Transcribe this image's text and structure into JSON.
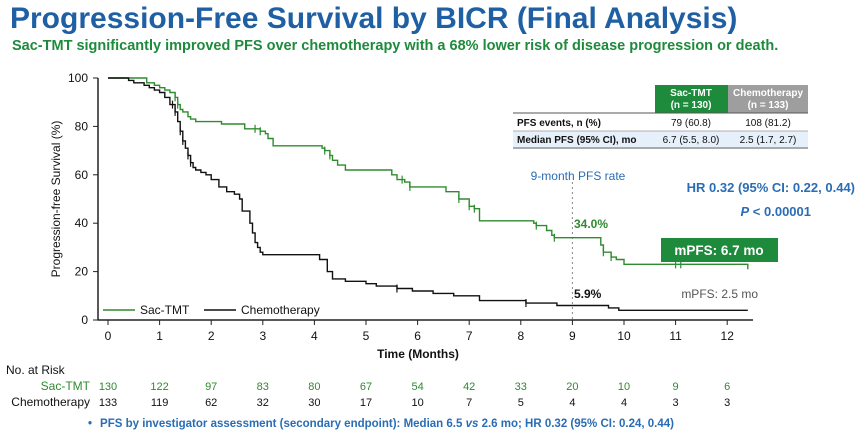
{
  "title": "Progression-Free Survival by BICR (Final Analysis)",
  "subtitle": "Sac-TMT significantly improved PFS over chemotherapy with a 68% lower risk of disease progression or death.",
  "colors": {
    "title": "#1f5fa3",
    "subtitle": "#1e8a3c",
    "sac": "#2e8b2e",
    "chemo": "#111111",
    "blue_text": "#2a6cb5",
    "median_box": "#1e8a3c",
    "chemo_header": "#9e9e9e"
  },
  "chart_data": {
    "type": "line",
    "xlabel": "Time (Months)",
    "ylabel": "Progression-free Survival (%)",
    "xlim": [
      0,
      12.5
    ],
    "ylim": [
      0,
      100
    ],
    "xticks": [
      0,
      1,
      2,
      3,
      4,
      5,
      6,
      7,
      8,
      9,
      10,
      11,
      12
    ],
    "yticks": [
      0,
      20,
      40,
      60,
      80,
      100
    ],
    "legend_position": "bottom-left",
    "series": [
      {
        "name": "Sac-TMT",
        "color": "#2e8b2e",
        "x": [
          0,
          0.6,
          0.75,
          0.9,
          1.0,
          1.1,
          1.2,
          1.3,
          1.35,
          1.4,
          1.45,
          1.55,
          1.6,
          1.7,
          1.85,
          2.2,
          2.5,
          2.65,
          2.85,
          2.95,
          3.05,
          3.1,
          3.2,
          3.3,
          3.6,
          4.05,
          4.15,
          4.2,
          4.3,
          4.35,
          4.45,
          4.6,
          5.2,
          5.5,
          5.6,
          5.75,
          5.85,
          5.95,
          6.55,
          6.8,
          7.0,
          7.1,
          7.2,
          8.1,
          8.25,
          8.3,
          8.5,
          8.6,
          8.65,
          8.75,
          9.5,
          9.55,
          9.6,
          9.75,
          9.85,
          10.0,
          10.3,
          10.6,
          11.0,
          12.4
        ],
        "y": [
          100,
          100,
          98,
          97,
          96,
          95,
          94,
          92,
          89,
          87,
          86,
          84,
          83,
          82,
          82,
          81,
          81,
          79,
          79,
          78,
          77,
          75,
          72,
          72,
          72,
          72,
          71,
          70,
          68,
          66,
          64,
          62,
          62,
          60,
          58,
          57,
          55,
          55,
          53,
          50,
          47,
          46,
          41,
          41,
          40,
          39,
          37,
          35,
          34,
          34,
          34,
          31,
          28,
          26,
          25,
          23,
          23,
          23,
          23,
          21
        ]
      },
      {
        "name": "Chemotherapy",
        "color": "#111111",
        "x": [
          0,
          0.3,
          0.4,
          0.5,
          0.6,
          0.7,
          0.8,
          0.9,
          1.0,
          1.1,
          1.2,
          1.3,
          1.35,
          1.4,
          1.45,
          1.5,
          1.55,
          1.6,
          1.65,
          1.7,
          1.8,
          1.9,
          2.0,
          2.15,
          2.3,
          2.45,
          2.55,
          2.6,
          2.75,
          2.8,
          2.85,
          2.9,
          2.95,
          3.0,
          3.5,
          4.0,
          4.1,
          4.25,
          4.35,
          4.6,
          5.0,
          5.2,
          5.6,
          5.9,
          6.3,
          6.7,
          7.2,
          8.1,
          8.7,
          9.7,
          9.9,
          12.4
        ],
        "y": [
          100,
          100,
          99,
          98,
          98,
          97,
          96,
          95,
          94,
          92,
          89,
          86,
          82,
          78,
          74,
          71,
          68,
          65,
          63,
          62,
          61,
          60,
          58,
          55,
          53,
          52,
          50,
          45,
          40,
          36,
          32,
          30,
          28,
          27,
          27,
          27,
          25,
          20,
          17,
          16,
          15,
          14,
          13,
          12,
          11,
          10,
          8,
          7,
          6,
          5,
          4,
          4
        ]
      }
    ],
    "annotations": {
      "pfs9_label": "9-month PFS rate",
      "sac_rate": "34.0%",
      "chemo_rate": "5.9%",
      "hr": "HR 0.32 (95% CI: 0.22, 0.44)",
      "p_prefix": "P",
      "p_value": " < 0.00001",
      "mpfs_sac": "mPFS: 6.7 mo",
      "mpfs_chemo": "mPFS: 2.5 mo"
    },
    "table": {
      "headers": [
        "",
        "Sac-TMT\n(n = 130)",
        "Chemotherapy\n(n = 133)"
      ],
      "rows": [
        [
          "PFS events, n (%)",
          "79 (60.8)",
          "108 (81.2)"
        ],
        [
          "Median PFS (95% CI), mo",
          "6.7 (5.5, 8.0)",
          "2.5 (1.7, 2.7)"
        ]
      ]
    },
    "at_risk": {
      "title": "No. at Risk",
      "rows": [
        {
          "label": "Sac-TMT",
          "values": [
            130,
            122,
            97,
            83,
            80,
            67,
            54,
            42,
            33,
            20,
            10,
            9,
            6
          ]
        },
        {
          "label": "Chemotherapy",
          "values": [
            133,
            119,
            62,
            32,
            30,
            17,
            10,
            7,
            5,
            4,
            4,
            3,
            3
          ]
        }
      ]
    }
  },
  "footnote": {
    "bullet": "•",
    "t1": "PFS by investigator assessment (secondary endpoint): Median 6.5 ",
    "vs": "vs",
    "t2": " 2.6 mo; HR 0.32 (95% CI: 0.24, 0.44)"
  }
}
